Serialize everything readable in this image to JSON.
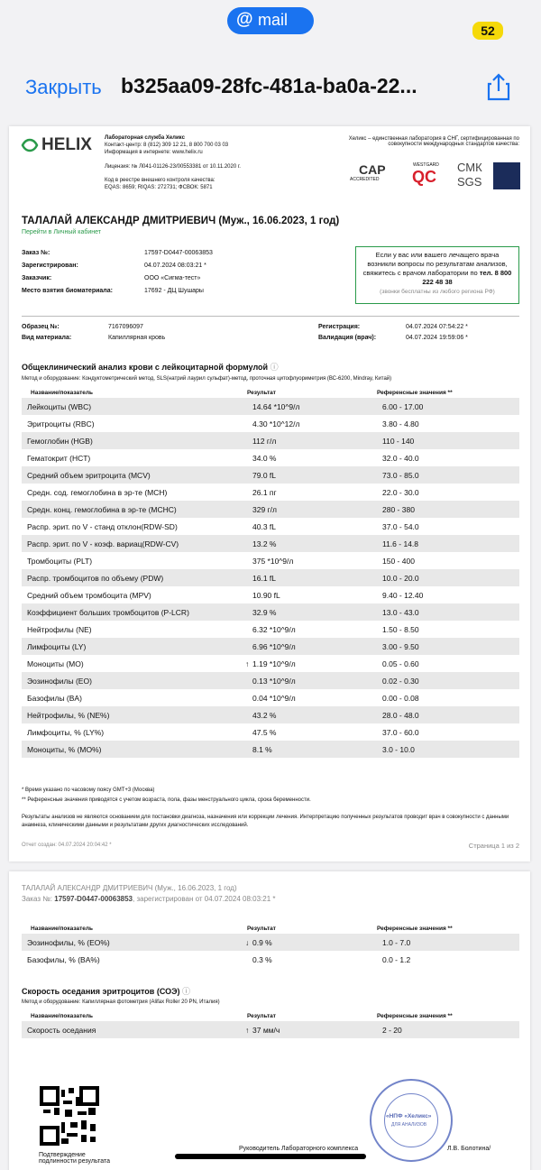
{
  "app": {
    "logo": "mail",
    "badge": "52",
    "close": "Закрыть",
    "filename": "b325aa09-28fc-481a-ba0a-22..."
  },
  "page1": {
    "lab": {
      "brand": "HELIX",
      "name": "Лабораторная служба Хеликс",
      "contacts": "Контакт-центр: 8 (812) 309 12 21, 8 800 700 03 03",
      "web": "Информация в интернете: www.helix.ru",
      "license": "Лицензия: № Л041-01126-23/00553381 от 10.11.2020 г.",
      "registry": "Код в реестре внешнего контроля качества:",
      "codes": "EQAS: 8659; RIQAS: 272731; ФСВОК: 5871"
    },
    "certs": {
      "text": "Хеликс – единственная лаборатория в СНГ, сертифицированная по совокупности международных стандартов качества:",
      "cap": "CAP",
      "accredited": "ACCREDITED",
      "westgard": "WESTGARD",
      "qc": "QC",
      "smk": "СМК",
      "sgs": "SGS"
    },
    "patient": {
      "name": "ТАЛАЛАЙ АЛЕКСАНДР ДМИТРИЕВИЧ (Муж., 16.06.2023, 1 год)",
      "cabinet": "Перейти в Личный кабинет"
    },
    "order": [
      [
        "Заказ №:",
        "17597-D0447-00063853"
      ],
      [
        "Зарегистрирован:",
        "04.07.2024 08:03:21 *"
      ],
      [
        "Заказчик:",
        "ООО «Сигма-тест»"
      ],
      [
        "Место взятия биоматериала:",
        "17692 - ДЦ Шушары"
      ]
    ],
    "contact_box": {
      "text": "Если у вас или вашего лечащего врача возникли вопросы по результатам анализов, свяжитесь с врачом лаборатории по",
      "phone": "тел. 8 800 222 48 38",
      "note": "(звонки бесплатны из любого региона РФ)"
    },
    "sample": [
      [
        "Образец №:",
        "7167096097"
      ],
      [
        "Вид материала:",
        "Капиллярная кровь"
      ]
    ],
    "dates": [
      [
        "Регистрация:",
        "04.07.2024 07:54:22 *"
      ],
      [
        "Валидация (врач):",
        "04.07.2024 19:59:06 *"
      ]
    ],
    "section": {
      "title": "Общеклинический анализ крови с лейкоцитарной формулой",
      "method": "Метод и оборудование: Кондуктометрический метод, SLS(натрий лаурил сульфат)-метод, проточная цитофлуориметрия (ВС-6200, Mindray, Китай)"
    },
    "table": {
      "headers": [
        "Название/показатель",
        "Результат",
        "Референсные значения **"
      ],
      "rows": [
        {
          "name": "Лейкоциты (WBC)",
          "result": "14.64 *10^9/л",
          "ref": "6.00 - 17.00"
        },
        {
          "name": "Эритроциты (RBC)",
          "result": "4.30 *10^12/л",
          "ref": "3.80 - 4.80"
        },
        {
          "name": "Гемоглобин (HGB)",
          "result": "112 г/л",
          "ref": "110 - 140"
        },
        {
          "name": "Гематокрит (HCT)",
          "result": "34.0 %",
          "ref": "32.0 - 40.0"
        },
        {
          "name": "Средний объем эритроцита (MCV)",
          "result": "79.0 fL",
          "ref": "73.0 - 85.0"
        },
        {
          "name": "Средн. сод. гемоглобина в эр-те (MCH)",
          "result": "26.1 пг",
          "ref": "22.0 - 30.0"
        },
        {
          "name": "Средн. конц. гемоглобина в эр-те (MCHC)",
          "result": "329 г/л",
          "ref": "280 - 380"
        },
        {
          "name": "Распр. эрит. по V - станд отклон(RDW-SD)",
          "result": "40.3 fL",
          "ref": "37.0 - 54.0"
        },
        {
          "name": "Распр. эрит. по V - коэф. вариац(RDW-CV)",
          "result": "13.2 %",
          "ref": "11.6 - 14.8"
        },
        {
          "name": "Тромбоциты (PLT)",
          "result": "375 *10^9/л",
          "ref": "150 - 400"
        },
        {
          "name": "Распр. тромбоцитов по объему (PDW)",
          "result": "16.1 fL",
          "ref": "10.0 - 20.0"
        },
        {
          "name": "Средний объем тромбоцита (MPV)",
          "result": "10.90 fL",
          "ref": "9.40 - 12.40"
        },
        {
          "name": "Коэффициент больших тромбоцитов (P-LCR)",
          "result": "32.9 %",
          "ref": "13.0 - 43.0"
        },
        {
          "name": "Нейтрофилы (NE)",
          "result": "6.32 *10^9/л",
          "ref": "1.50 - 8.50"
        },
        {
          "name": "Лимфоциты (LY)",
          "result": "6.96 *10^9/л",
          "ref": "3.00 - 9.50"
        },
        {
          "name": "Моноциты (MO)",
          "flag": "↑",
          "result": "1.19 *10^9/л",
          "ref": "0.05 - 0.60"
        },
        {
          "name": "Эозинофилы (EO)",
          "result": "0.13 *10^9/л",
          "ref": "0.02 - 0.30"
        },
        {
          "name": "Базофилы (BA)",
          "result": "0.04 *10^9/л",
          "ref": "0.00 - 0.08"
        },
        {
          "name": "Нейтрофилы, % (NE%)",
          "result": "43.2 %",
          "ref": "28.0 - 48.0"
        },
        {
          "name": "Лимфоциты, % (LY%)",
          "result": "47.5 %",
          "ref": "37.0 - 60.0"
        },
        {
          "name": "Моноциты, % (MO%)",
          "result": "8.1 %",
          "ref": "3.0 - 10.0"
        }
      ]
    },
    "notes": [
      "* Время указано по часовому поясу GMT+3 (Москва)",
      "** Референсные значения приводятся с учетом возраста, пола, фазы менструального цикла, срока беременности."
    ],
    "disclaimer": "Результаты анализов не являются основанием для постановки диагноза, назначения или коррекции лечения. Интерпретацию полученных результатов проводит врач в совокупности с данными анамнеза, клиническими данными и результатами других диагностических исследований.",
    "created": "Отчет создан: 04.07.2024 20:04:42 *",
    "page": "Страница 1 из 2"
  },
  "page2": {
    "patient": "ТАЛАЛАЙ АЛЕКСАНДР ДМИТРИЕВИЧ (Муж., 16.06.2023, 1 год)",
    "order": {
      "label": "Заказ №:",
      "number": "17597-D0447-00063853",
      "registered": ", зарегистрирован от 04.07.2024 08:03:21 *"
    },
    "table": {
      "headers": [
        "Название/показатель",
        "Результат",
        "Референсные значения **"
      ],
      "rows": [
        {
          "name": "Эозинофилы, % (EO%)",
          "flag": "↓",
          "result": "0.9 %",
          "ref": "1.0 - 7.0"
        },
        {
          "name": "Базофилы, % (BA%)",
          "result": "0.3 %",
          "ref": "0.0 - 1.2"
        }
      ]
    },
    "section": {
      "title": "Скорость оседания эритроцитов (СОЭ)",
      "method": "Метод и оборудование: Капиллярная фотометрия (Alifax Roller 20 PN, Италия)"
    },
    "table2": {
      "headers": [
        "Название/показатель",
        "Результат",
        "Референсные значения **"
      ],
      "rows": [
        {
          "name": "Скорость оседания",
          "flag": "↑",
          "result": "37 мм/ч",
          "ref": "2 - 20"
        }
      ]
    },
    "qr_caption": "Подтверждение подлинности результата",
    "signature": {
      "role": "Руководитель Лабораторного комплекса",
      "name": "Л.В. Болотина/"
    },
    "stamp": {
      "name": "«НПФ «Хеликс»",
      "sub": "ДЛЯ АНАЛИЗОВ"
    }
  }
}
